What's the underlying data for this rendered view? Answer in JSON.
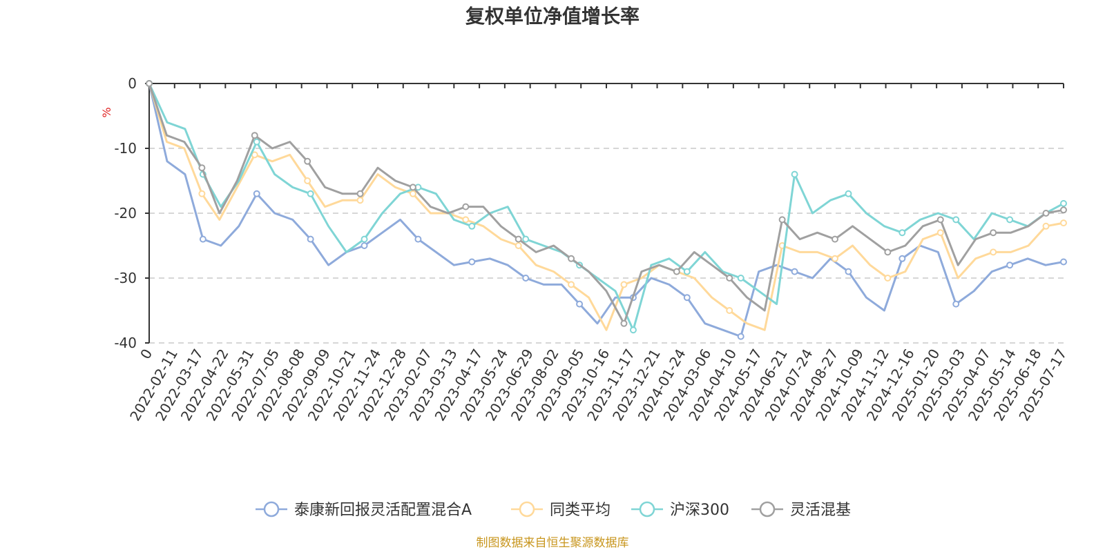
{
  "chart_data": {
    "type": "line",
    "title": "复权单位净值增长率",
    "ylabel": "%",
    "ylim": [
      -40,
      0
    ],
    "yticks": [
      "0",
      "-10",
      "-20",
      "-30",
      "-40"
    ],
    "x_labels": [
      "0",
      "2022-02-11",
      "2022-03-17",
      "2022-04-22",
      "2022-05-31",
      "2022-07-05",
      "2022-08-08",
      "2022-09-09",
      "2022-10-21",
      "2022-11-24",
      "2022-12-28",
      "2023-02-07",
      "2023-03-13",
      "2023-04-17",
      "2023-05-24",
      "2023-06-29",
      "2023-08-02",
      "2023-09-05",
      "2023-10-16",
      "2023-11-17",
      "2023-12-21",
      "2024-01-24",
      "2024-03-06",
      "2024-04-10",
      "2024-05-17",
      "2024-06-21",
      "2024-07-24",
      "2024-08-27",
      "2024-10-09",
      "2024-11-12",
      "2024-12-16",
      "2025-01-20",
      "2025-03-03",
      "2025-04-07",
      "2025-05-14",
      "2025-06-18",
      "2025-07-17"
    ],
    "grid": true,
    "legend_position": "bottom",
    "series": [
      {
        "name": "泰康新回报灵活配置混合A",
        "color": "#8eaadb",
        "values": [
          0,
          -12,
          -14,
          -24,
          -25,
          -22,
          -17,
          -20,
          -21,
          -24,
          -28,
          -26,
          -25,
          -23,
          -21,
          -24,
          -26,
          -28,
          -27.5,
          -27,
          -28,
          -30,
          -31,
          -31,
          -34,
          -37,
          -33,
          -33,
          -30,
          -31,
          -33,
          -37,
          -38,
          -39,
          -29,
          -28,
          -29,
          -30,
          -27,
          -29,
          -33,
          -35,
          -27,
          -25,
          -26,
          -34,
          -32,
          -29,
          -28,
          -27,
          -28,
          -27.5
        ]
      },
      {
        "name": "同类平均",
        "color": "#ffd99a",
        "values": [
          0,
          -9,
          -10,
          -17,
          -21,
          -16,
          -11,
          -12,
          -11,
          -15,
          -19,
          -18,
          -18,
          -14,
          -16,
          -17,
          -20,
          -20,
          -21,
          -22,
          -24,
          -25,
          -28,
          -29,
          -31,
          -33,
          -38,
          -31,
          -30,
          -28,
          -29,
          -30,
          -33,
          -35,
          -37,
          -38,
          -25,
          -26,
          -26,
          -27,
          -25,
          -28,
          -30,
          -29,
          -24,
          -23,
          -30,
          -27,
          -26,
          -26,
          -25,
          -22,
          -21.5
        ]
      },
      {
        "name": "沪深300",
        "color": "#7fd5d5",
        "values": [
          0,
          -6,
          -7,
          -14,
          -19,
          -15,
          -9,
          -14,
          -16,
          -17,
          -22,
          -26,
          -24,
          -20,
          -17,
          -16,
          -17,
          -21,
          -22,
          -20,
          -19,
          -24,
          -25,
          -26,
          -28,
          -30,
          -32,
          -38,
          -28,
          -27,
          -29,
          -26,
          -29,
          -30,
          -32,
          -34,
          -14,
          -20,
          -18,
          -17,
          -20,
          -22,
          -23,
          -21,
          -20,
          -21,
          -24,
          -20,
          -21,
          -22,
          -20,
          -18.5
        ]
      },
      {
        "name": "灵活混基",
        "color": "#a0a0a0",
        "values": [
          0,
          -8,
          -9,
          -13,
          -20,
          -15,
          -8,
          -10,
          -9,
          -12,
          -16,
          -17,
          -17,
          -13,
          -15,
          -16,
          -19,
          -20,
          -19,
          -19,
          -22,
          -24,
          -26,
          -25,
          -27,
          -29,
          -32,
          -37,
          -29,
          -28,
          -29,
          -26,
          -28,
          -30,
          -33,
          -35,
          -21,
          -24,
          -23,
          -24,
          -22,
          -24,
          -26,
          -25,
          -22,
          -21,
          -28,
          -24,
          -23,
          -23,
          -22,
          -20,
          -19.5
        ]
      }
    ]
  },
  "footer_note": "制图数据来自恒生聚源数据库"
}
